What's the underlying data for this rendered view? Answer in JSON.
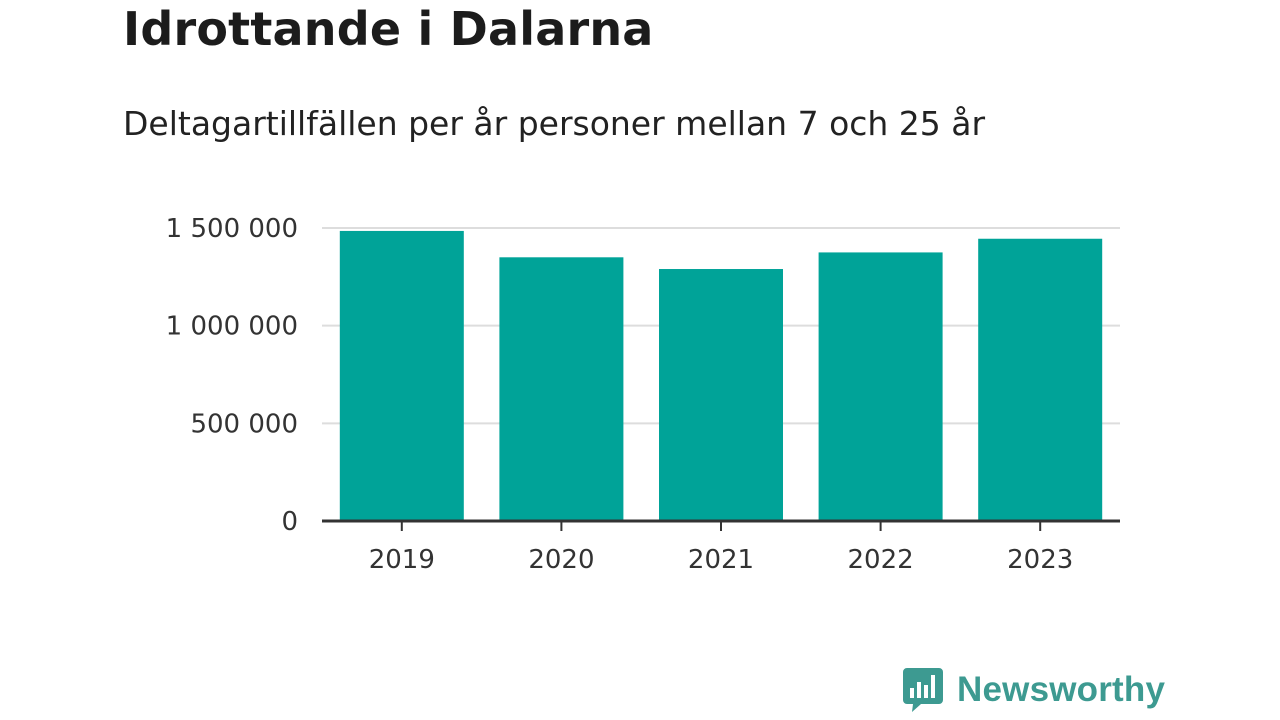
{
  "title": "Idrottande i Dalarna",
  "subtitle": "Deltagartillfällen per år personer mellan 7 och 25 år",
  "brand": {
    "name": "Newsworthy",
    "icon": "newsworthy-chart-bubble-icon",
    "color": "#3d9a91"
  },
  "colors": {
    "bar": "#00a398",
    "grid": "#dddddd",
    "axis": "#333333"
  },
  "chart_data": {
    "type": "bar",
    "categories": [
      "2019",
      "2020",
      "2021",
      "2022",
      "2023"
    ],
    "values": [
      1485000,
      1350000,
      1290000,
      1375000,
      1445000
    ],
    "ylim": [
      0,
      1500000
    ],
    "yticks": [
      0,
      500000,
      1000000,
      1500000
    ],
    "ytick_labels": [
      "0",
      "500 000",
      "1 000 000",
      "1 500 000"
    ],
    "grid": true,
    "legend": false
  }
}
